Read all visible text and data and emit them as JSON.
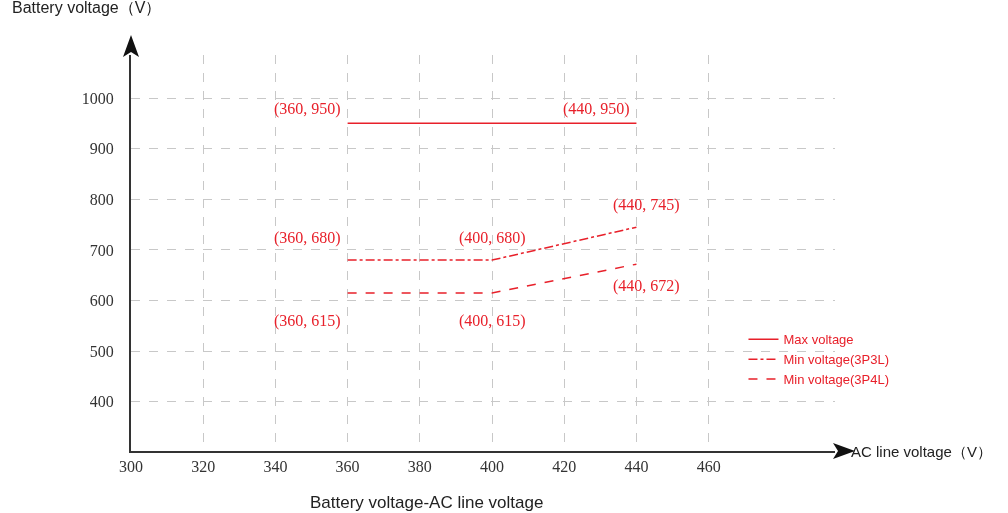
{
  "chart_data": {
    "type": "line",
    "title": "Battery voltage-AC line voltage",
    "xlabel": "AC line voltage（V）",
    "ylabel": "Battery voltage（V）",
    "xlim": [
      300,
      495
    ],
    "ylim": [
      303,
      1085
    ],
    "xticks": [
      300,
      320,
      340,
      360,
      380,
      400,
      420,
      440,
      460
    ],
    "yticks": [
      400,
      500,
      600,
      700,
      800,
      900,
      1000
    ],
    "grid": true,
    "legend": "right",
    "marker": "none",
    "series": [
      {
        "name": "Max voltage",
        "color": "#e8202a",
        "line_style": "solid",
        "x": [
          360,
          440
        ],
        "values": [
          950,
          950
        ]
      },
      {
        "name": "Min voltage(3P3L)",
        "color": "#e8202a",
        "line_style": "dashdot",
        "x": [
          360,
          400,
          440
        ],
        "values": [
          680,
          680,
          745
        ]
      },
      {
        "name": "Min voltage(3P4L)",
        "color": "#e8202a",
        "line_style": "dashed",
        "x": [
          360,
          400,
          440
        ],
        "values": [
          615,
          615,
          672
        ]
      }
    ],
    "annotations": [
      {
        "text": "(360, 950)",
        "x": 360,
        "y": 950
      },
      {
        "text": "(440, 950)",
        "x": 440,
        "y": 950
      },
      {
        "text": "(360, 680)",
        "x": 360,
        "y": 680
      },
      {
        "text": "(400, 680)",
        "x": 400,
        "y": 680
      },
      {
        "text": "(440, 745)",
        "x": 440,
        "y": 745
      },
      {
        "text": "(360, 615)",
        "x": 360,
        "y": 615
      },
      {
        "text": "(400, 615)",
        "x": 400,
        "y": 615
      },
      {
        "text": "(440, 672)",
        "x": 440,
        "y": 672
      }
    ]
  }
}
